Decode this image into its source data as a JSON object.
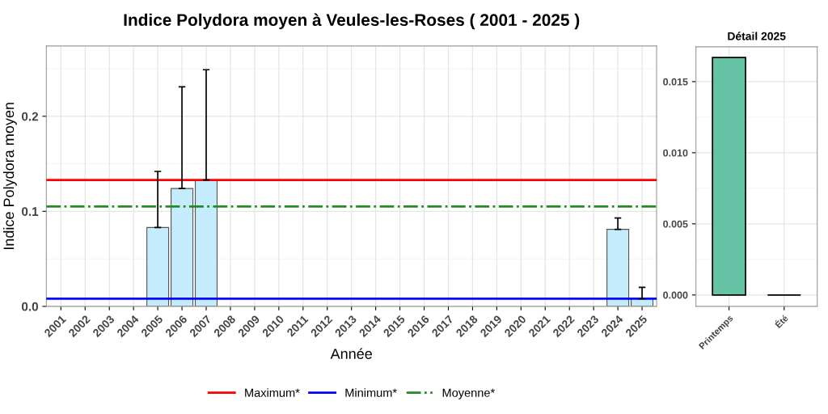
{
  "chart_data": [
    {
      "type": "bar",
      "title": "Indice Polydora moyen à Veules-les-Roses ( 2001 - 2025 )",
      "xlabel": "Année",
      "ylabel": "Indice Polydora moyen",
      "categories": [
        "2001",
        "2002",
        "2003",
        "2004",
        "2005",
        "2006",
        "2007",
        "2008",
        "2009",
        "2010",
        "2011",
        "2012",
        "2013",
        "2014",
        "2015",
        "2016",
        "2017",
        "2018",
        "2019",
        "2020",
        "2021",
        "2022",
        "2023",
        "2024",
        "2025"
      ],
      "values": [
        null,
        null,
        null,
        null,
        0.083,
        0.124,
        0.133,
        null,
        null,
        null,
        null,
        null,
        null,
        null,
        null,
        null,
        null,
        null,
        null,
        null,
        null,
        null,
        null,
        0.081,
        0.008
      ],
      "errors": [
        null,
        null,
        null,
        null,
        [
          0.083,
          0.142
        ],
        [
          0.124,
          0.231
        ],
        [
          0.133,
          0.249
        ],
        null,
        null,
        null,
        null,
        null,
        null,
        null,
        null,
        null,
        null,
        null,
        null,
        null,
        null,
        null,
        null,
        [
          0.081,
          0.093
        ],
        [
          0.008,
          0.02
        ]
      ],
      "color": "#c4ecfc",
      "ylim": [
        0,
        0.274
      ],
      "yticks": [
        {
          "value": 0,
          "label": "0.0"
        },
        0.1,
        0.2
      ],
      "ref_lines": [
        {
          "axis": "y",
          "value": 0.133,
          "label": "Maximum*",
          "color": "#ff0000",
          "line_style": "solid"
        },
        {
          "axis": "y",
          "value": 0.008,
          "label": "Minimum*",
          "color": "#0000ff",
          "line_style": "solid"
        },
        {
          "axis": "y",
          "value": 0.105,
          "label": "Moyenne*",
          "color": "#228b22",
          "line_style": "dashdot"
        }
      ],
      "grid": true,
      "legend": "bottom"
    },
    {
      "type": "bar",
      "title": "Détail 2025",
      "categories": [
        "Printemps",
        "Été"
      ],
      "values": [
        0.0167,
        0
      ],
      "colors": [
        "#66c2a5",
        "#000000"
      ],
      "ylim": [
        -0.0008,
        0.01745
      ],
      "yticks": [
        {
          "value": 0,
          "label": "0.000"
        },
        {
          "value": 0.005,
          "label": "0.005"
        },
        {
          "value": 0.01,
          "label": "0.010"
        },
        {
          "value": 0.015,
          "label": "0.015"
        }
      ],
      "grid": true
    }
  ]
}
